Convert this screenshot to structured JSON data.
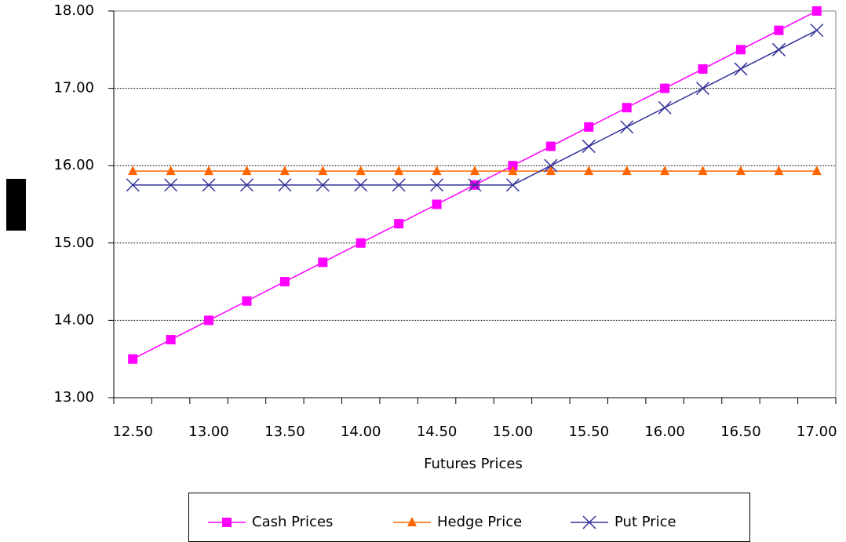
{
  "chart_data": {
    "type": "line",
    "x_label": "Futures Prices",
    "categories": [
      "12.50",
      null,
      "13.00",
      null,
      "13.50",
      null,
      "14.00",
      null,
      "14.50",
      null,
      "15.00",
      null,
      "15.50",
      null,
      "16.00",
      null,
      "16.50",
      null,
      "17.00"
    ],
    "series": [
      {
        "name": "Cash Prices",
        "color": "#ff00ff",
        "marker": "square",
        "values": [
          13.5,
          13.75,
          14.0,
          14.25,
          14.5,
          14.75,
          15.0,
          15.25,
          15.5,
          15.75,
          16.0,
          16.25,
          16.5,
          16.75,
          17.0,
          17.25,
          17.5,
          17.75,
          18.0
        ]
      },
      {
        "name": "Hedge Price",
        "color": "#ff6600",
        "marker": "triangle",
        "values": [
          15.93,
          15.93,
          15.93,
          15.93,
          15.93,
          15.93,
          15.93,
          15.93,
          15.93,
          15.93,
          15.93,
          15.93,
          15.93,
          15.93,
          15.93,
          15.93,
          15.93,
          15.93,
          15.93
        ]
      },
      {
        "name": "Put Price",
        "color": "#333399",
        "marker": "x",
        "values": [
          15.75,
          15.75,
          15.75,
          15.75,
          15.75,
          15.75,
          15.75,
          15.75,
          15.75,
          15.75,
          15.75,
          16.0,
          16.25,
          16.5,
          16.75,
          17.0,
          17.25,
          17.5,
          17.75
        ]
      }
    ],
    "ylim": [
      13,
      18
    ],
    "yticks": [
      {
        "value": 13,
        "label": "13.00"
      },
      {
        "value": 14,
        "label": "14.00"
      },
      {
        "value": 15,
        "label": "15.00"
      },
      {
        "value": 16,
        "label": "16.00"
      },
      {
        "value": 17,
        "label": "17.00"
      },
      {
        "value": 18,
        "label": "18.00"
      }
    ],
    "grid": true,
    "legend": "bottom"
  }
}
